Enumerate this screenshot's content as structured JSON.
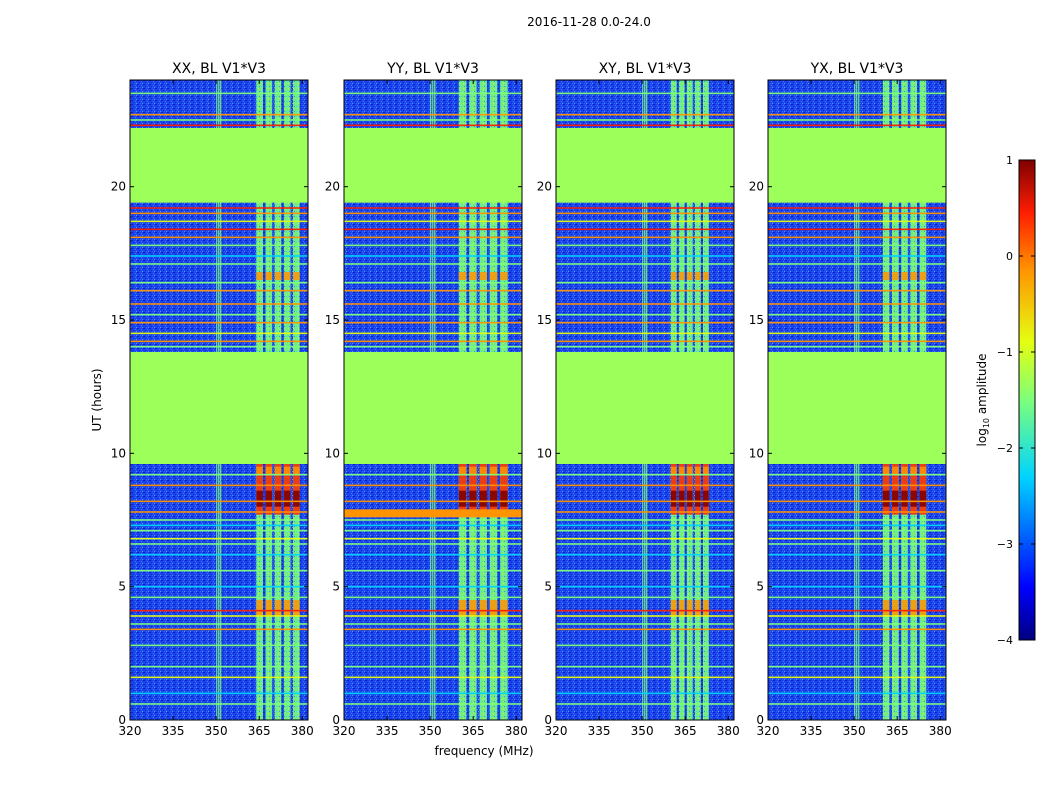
{
  "figure": {
    "suptitle": "2016-11-28 0.0-24.0",
    "xlabel": "frequency (MHz)",
    "ylabel": "UT (hours)"
  },
  "chart_data": {
    "type": "heatmap",
    "title": "2016-11-28 0.0-24.0",
    "xlabel": "frequency (MHz)",
    "ylabel": "UT (hours)",
    "xlim": [
      320,
      382
    ],
    "ylim": [
      0,
      24
    ],
    "x_ticks": [
      320,
      335,
      350,
      365,
      380
    ],
    "y_ticks": [
      0,
      5,
      10,
      15,
      20
    ],
    "panels": [
      {
        "title": "XX, BL V1*V3",
        "active_band_mhz": [
          364,
          380
        ],
        "rfi_band_mhz": [
          350,
          352
        ]
      },
      {
        "title": "YY, BL V1*V3",
        "active_band_mhz": [
          360,
          378
        ],
        "rfi_band_mhz": [
          350,
          352
        ]
      },
      {
        "title": "XY, BL V1*V3",
        "active_band_mhz": [
          360,
          374
        ],
        "rfi_band_mhz": [
          350,
          352
        ]
      },
      {
        "title": "YX, BL V1*V3",
        "active_band_mhz": [
          360,
          376
        ],
        "rfi_band_mhz": [
          350,
          352
        ]
      }
    ],
    "flagged_intervals_hours": [
      [
        9.6,
        13.8
      ],
      [
        19.4,
        22.2
      ]
    ],
    "bright_rfi_interval_hours": [
      7.6,
      9.6
    ],
    "colorbar": {
      "label": "log10 amplitude",
      "label_main": "log",
      "label_sub": "10",
      "label_tail": " amplitude",
      "min": -4,
      "max": 1,
      "ticks": [
        1,
        0,
        -1,
        -2,
        -3,
        -4
      ],
      "colormap": "jet"
    }
  }
}
